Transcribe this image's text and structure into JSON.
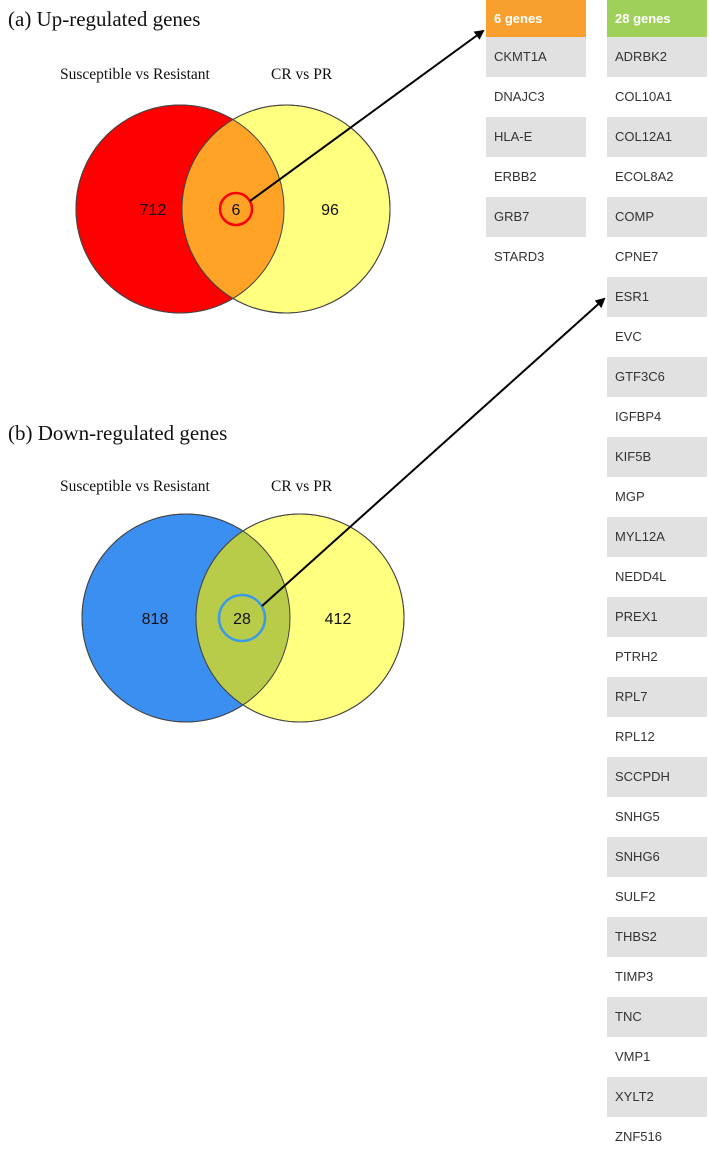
{
  "panel_a": {
    "title": "(a) Up-regulated genes",
    "left_label": "Susceptible vs Resistant",
    "right_label": "CR vs PR",
    "left_only": "712",
    "overlap": "6",
    "right_only": "96",
    "colors": {
      "left": "#ff0000",
      "right": "#ffff80",
      "overlap": "#ffa326",
      "highlight_ring": "#ff0000"
    }
  },
  "panel_b": {
    "title": "(b) Down-regulated genes",
    "left_label": "Susceptible vs Resistant",
    "right_label": "CR vs PR",
    "left_only": "818",
    "overlap": "28",
    "right_only": "412",
    "colors": {
      "left": "#3b8ff0",
      "right": "#ffff80",
      "overlap": "#b8cc4a",
      "highlight_ring": "#3b9be8"
    }
  },
  "list_a": {
    "header": "6 genes",
    "header_color": "#f7a030",
    "genes": [
      "CKMT1A",
      "DNAJC3",
      "HLA-E",
      "ERBB2",
      "GRB7",
      "STARD3"
    ]
  },
  "list_b": {
    "header": "28 genes",
    "header_color": "#9fd05a",
    "genes": [
      "ADRBK2",
      "COL10A1",
      "COL12A1",
      "ECOL8A2",
      "COMP",
      "CPNE7",
      "ESR1",
      "EVC",
      "GTF3C6",
      "IGFBP4",
      "KIF5B",
      "MGP",
      "MYL12A",
      "NEDD4L",
      "PREX1",
      "PTRH2",
      "RPL7",
      "RPL12",
      "SCCPDH",
      "SNHG5",
      "SNHG6",
      "SULF2",
      "THBS2",
      "TIMP3",
      "TNC",
      "VMP1",
      "XYLT2",
      "ZNF516"
    ]
  }
}
